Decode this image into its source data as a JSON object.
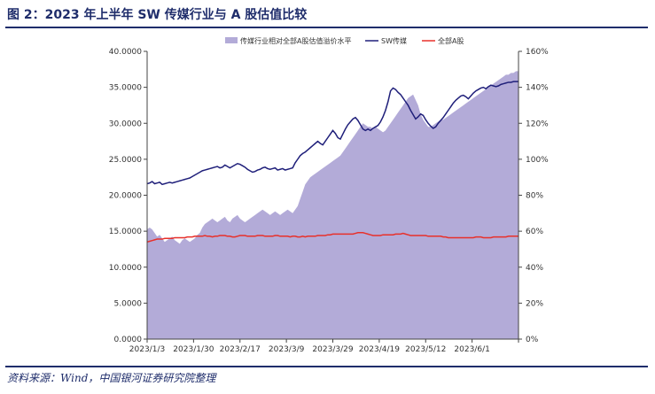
{
  "title": "图 2：2023 年上半年 SW 传媒行业与 A 股估值比较",
  "source": "资料来源：Wind，中国银河证券研究院整理",
  "colors": {
    "area": "#b3abd8",
    "sw": "#1f1f7a",
    "all_a": "#e8302a",
    "title": "#1f2d6b"
  },
  "chart_data": {
    "type": "line",
    "x_tick_labels": [
      "2023/1/3",
      "2023/1/30",
      "2023/2/17",
      "2023/3/9",
      "2023/3/29",
      "2023/4/19",
      "2023/5/12",
      "2023/6/1"
    ],
    "y_left": {
      "range": [
        0,
        40
      ],
      "ticks": [
        "0.0000",
        "5.0000",
        "10.0000",
        "15.0000",
        "20.0000",
        "25.0000",
        "30.0000",
        "35.0000",
        "40.0000"
      ]
    },
    "y_right": {
      "range": [
        0,
        160
      ],
      "ticks": [
        "0%",
        "20%",
        "40%",
        "60%",
        "80%",
        "100%",
        "120%",
        "140%",
        "160%"
      ]
    },
    "legend": [
      "传媒行业相对全部A股估值溢价水平",
      "SW传媒",
      "全部A股"
    ],
    "series": [
      {
        "name": "传媒行业相对全部A股估值溢价水平",
        "kind": "area",
        "axis": "right",
        "values": [
          61,
          62,
          61,
          59,
          57,
          58,
          56,
          54,
          55,
          56,
          57,
          55,
          54,
          53,
          55,
          56,
          55,
          54,
          55,
          56,
          58,
          59,
          62,
          64,
          65,
          66,
          67,
          66,
          65,
          66,
          67,
          68,
          66,
          65,
          67,
          68,
          69,
          67,
          66,
          65,
          66,
          67,
          68,
          69,
          70,
          71,
          72,
          71,
          70,
          69,
          70,
          71,
          70,
          69,
          70,
          71,
          72,
          71,
          70,
          72,
          74,
          78,
          82,
          86,
          88,
          90,
          91,
          92,
          93,
          94,
          95,
          96,
          97,
          98,
          99,
          100,
          101,
          102,
          104,
          106,
          108,
          110,
          112,
          114,
          116,
          118,
          120,
          119,
          118,
          118,
          117,
          118,
          117,
          116,
          115,
          116,
          118,
          120,
          122,
          124,
          126,
          128,
          130,
          132,
          134,
          135,
          136,
          133,
          130,
          125,
          122,
          120,
          118,
          118,
          119,
          120,
          121,
          122,
          122,
          123,
          124,
          125,
          126,
          127,
          128,
          129,
          130,
          131,
          132,
          133,
          134,
          135,
          136,
          137,
          138,
          139,
          140,
          141,
          142,
          143,
          144,
          145,
          146,
          147,
          147,
          148,
          148,
          149,
          149
        ]
      },
      {
        "name": "SW传媒",
        "kind": "line",
        "axis": "left",
        "values": [
          21.6,
          21.7,
          21.9,
          21.6,
          21.7,
          21.8,
          21.5,
          21.6,
          21.7,
          21.8,
          21.7,
          21.8,
          21.9,
          22.0,
          22.1,
          22.2,
          22.3,
          22.4,
          22.6,
          22.8,
          23.0,
          23.2,
          23.4,
          23.5,
          23.6,
          23.7,
          23.8,
          23.9,
          24.0,
          23.8,
          23.9,
          24.2,
          24.0,
          23.8,
          24.0,
          24.2,
          24.4,
          24.3,
          24.1,
          23.9,
          23.6,
          23.4,
          23.2,
          23.3,
          23.5,
          23.6,
          23.8,
          23.9,
          23.7,
          23.6,
          23.7,
          23.8,
          23.5,
          23.6,
          23.7,
          23.5,
          23.6,
          23.7,
          23.8,
          24.5,
          25.0,
          25.5,
          25.8,
          26.0,
          26.3,
          26.6,
          26.9,
          27.2,
          27.5,
          27.2,
          27.0,
          27.5,
          28.0,
          28.5,
          29.0,
          28.6,
          28.0,
          27.8,
          28.5,
          29.2,
          29.8,
          30.2,
          30.6,
          30.8,
          30.4,
          29.8,
          29.2,
          29.0,
          29.2,
          29.0,
          29.3,
          29.5,
          29.7,
          30.2,
          30.9,
          31.8,
          33.0,
          34.5,
          34.9,
          34.7,
          34.3,
          34.0,
          33.5,
          33.0,
          32.5,
          31.8,
          31.2,
          30.6,
          30.9,
          31.3,
          31.1,
          30.5,
          30.0,
          29.6,
          29.3,
          29.5,
          30.0,
          30.4,
          30.8,
          31.3,
          31.8,
          32.3,
          32.8,
          33.2,
          33.5,
          33.8,
          33.9,
          33.7,
          33.4,
          33.8,
          34.2,
          34.5,
          34.7,
          34.9,
          35.0,
          34.8,
          35.1,
          35.3,
          35.2,
          35.1,
          35.2,
          35.4,
          35.5,
          35.6,
          35.7,
          35.7,
          35.8,
          35.8,
          35.8
        ]
      },
      {
        "name": "全部A股",
        "kind": "line",
        "axis": "left",
        "values": [
          13.5,
          13.6,
          13.7,
          13.8,
          13.9,
          13.9,
          13.9,
          14.0,
          14.0,
          14.0,
          14.0,
          14.1,
          14.1,
          14.1,
          14.1,
          14.1,
          14.2,
          14.2,
          14.2,
          14.3,
          14.3,
          14.3,
          14.3,
          14.4,
          14.3,
          14.3,
          14.2,
          14.3,
          14.3,
          14.4,
          14.4,
          14.4,
          14.3,
          14.3,
          14.2,
          14.2,
          14.3,
          14.4,
          14.4,
          14.4,
          14.3,
          14.3,
          14.3,
          14.3,
          14.4,
          14.4,
          14.4,
          14.3,
          14.3,
          14.3,
          14.3,
          14.4,
          14.4,
          14.3,
          14.3,
          14.3,
          14.3,
          14.2,
          14.3,
          14.3,
          14.2,
          14.2,
          14.3,
          14.2,
          14.3,
          14.3,
          14.3,
          14.3,
          14.4,
          14.4,
          14.4,
          14.4,
          14.5,
          14.5,
          14.6,
          14.6,
          14.6,
          14.6,
          14.6,
          14.6,
          14.6,
          14.6,
          14.6,
          14.7,
          14.8,
          14.8,
          14.8,
          14.7,
          14.6,
          14.5,
          14.4,
          14.4,
          14.4,
          14.4,
          14.5,
          14.5,
          14.5,
          14.5,
          14.5,
          14.6,
          14.6,
          14.6,
          14.7,
          14.6,
          14.5,
          14.4,
          14.4,
          14.4,
          14.4,
          14.4,
          14.4,
          14.4,
          14.3,
          14.3,
          14.3,
          14.3,
          14.3,
          14.3,
          14.2,
          14.2,
          14.1,
          14.1,
          14.1,
          14.1,
          14.1,
          14.1,
          14.1,
          14.1,
          14.1,
          14.1,
          14.1,
          14.2,
          14.2,
          14.2,
          14.1,
          14.1,
          14.1,
          14.1,
          14.2,
          14.2,
          14.2,
          14.2,
          14.2,
          14.2,
          14.3,
          14.3,
          14.3,
          14.3,
          14.3
        ]
      }
    ]
  }
}
